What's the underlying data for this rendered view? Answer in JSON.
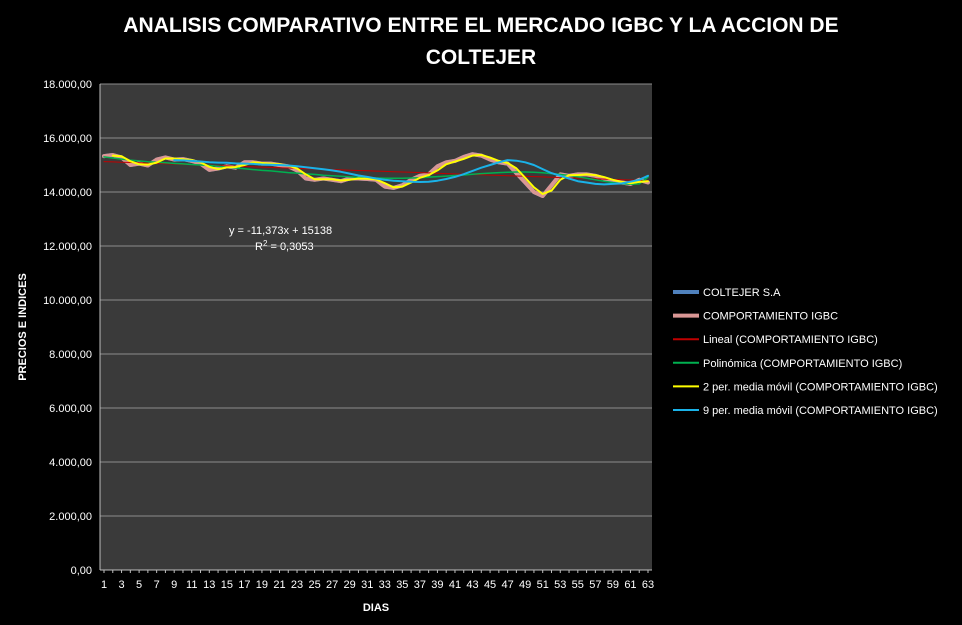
{
  "chart_data": {
    "type": "line",
    "title_line1": "ANALISIS COMPARATIVO ENTRE  EL MERCADO IGBC Y LA ACCION DE",
    "title_line2": "COLTEJER",
    "xlabel": "DIAS",
    "ylabel": "PRECIOS  E INDICES",
    "ylim": [
      0,
      18000
    ],
    "yticks": [
      "0,00",
      "2.000,00",
      "4.000,00",
      "6.000,00",
      "8.000,00",
      "10.000,00",
      "12.000,00",
      "14.000,00",
      "16.000,00",
      "18.000,00"
    ],
    "ytick_values": [
      0,
      2000,
      4000,
      6000,
      8000,
      10000,
      12000,
      14000,
      16000,
      18000
    ],
    "xticks": [
      "1",
      "3",
      "5",
      "7",
      "9",
      "11",
      "13",
      "15",
      "17",
      "19",
      "21",
      "23",
      "25",
      "27",
      "29",
      "31",
      "33",
      "35",
      "37",
      "39",
      "41",
      "43",
      "45",
      "47",
      "49",
      "51",
      "53",
      "55",
      "57",
      "59",
      "61",
      "63"
    ],
    "x": [
      1,
      2,
      3,
      4,
      5,
      6,
      7,
      8,
      9,
      10,
      11,
      12,
      13,
      14,
      15,
      16,
      17,
      18,
      19,
      20,
      21,
      22,
      23,
      24,
      25,
      26,
      27,
      28,
      29,
      30,
      31,
      32,
      33,
      34,
      35,
      36,
      37,
      38,
      39,
      40,
      41,
      42,
      43,
      44,
      45,
      46,
      47,
      48,
      49,
      50,
      51,
      52,
      53,
      54,
      55,
      56,
      57,
      58,
      59,
      60,
      61,
      62,
      63
    ],
    "grid": true,
    "legend_position": "right",
    "background_color": "#3a3a3a",
    "equation": "y = -11,373x + 15138",
    "r_squared_label": "R",
    "r_squared_exp": "2",
    "r_squared_value": " = 0,3053",
    "series": [
      {
        "name": "COLTEJER S.A",
        "color": "#4f81bd",
        "width": 4,
        "values": [
          15330,
          15370,
          15280,
          15000,
          15050,
          14980,
          15200,
          15280,
          15200,
          15220,
          15150,
          15050,
          14820,
          14870,
          14950,
          14900,
          15100,
          15100,
          15050,
          15050,
          15000,
          14950,
          14800,
          14500,
          14450,
          14500,
          14450,
          14400,
          14500,
          14500,
          14480,
          14450,
          14200,
          14150,
          14250,
          14450,
          14600,
          14650,
          14950,
          15100,
          15150,
          15300,
          15400,
          15350,
          15200,
          15100,
          15050,
          14700,
          14350,
          14000,
          13850,
          14250,
          14650,
          14600,
          14650,
          14650,
          14600,
          14500,
          14400,
          14350,
          14300,
          14450,
          14350
        ]
      },
      {
        "name": "COMPORTAMIENTO IGBC",
        "color": "#d99694",
        "width": 4,
        "values": [
          15330,
          15370,
          15280,
          15000,
          15050,
          14980,
          15200,
          15280,
          15200,
          15220,
          15150,
          15050,
          14820,
          14870,
          14950,
          14900,
          15100,
          15100,
          15050,
          15050,
          15000,
          14950,
          14800,
          14500,
          14450,
          14500,
          14450,
          14400,
          14500,
          14500,
          14480,
          14450,
          14200,
          14150,
          14250,
          14450,
          14600,
          14650,
          14950,
          15100,
          15150,
          15300,
          15400,
          15350,
          15200,
          15100,
          15050,
          14700,
          14350,
          14000,
          13850,
          14250,
          14650,
          14600,
          14650,
          14650,
          14600,
          14500,
          14400,
          14350,
          14300,
          14450,
          14350
        ]
      },
      {
        "name": "Lineal (COMPORTAMIENTO IGBC)",
        "color": "#c00000",
        "width": 1,
        "values": [
          15127,
          15115,
          15104,
          15092,
          15081,
          15070,
          15058,
          15047,
          15036,
          15024,
          15013,
          15002,
          14990,
          14979,
          14967,
          14956,
          14945,
          14933,
          14922,
          14911,
          14899,
          14888,
          14876,
          14865,
          14854,
          14842,
          14831,
          14820,
          14808,
          14797,
          14786,
          14774,
          14763,
          14751,
          14740,
          14729,
          14717,
          14706,
          14695,
          14683,
          14672,
          14661,
          14649,
          14638,
          14626,
          14615,
          14604,
          14592,
          14581,
          14570,
          14558,
          14547,
          14535,
          14524,
          14513,
          14501,
          14490,
          14479,
          14467,
          14456,
          14445,
          14433,
          14422
        ]
      },
      {
        "name": "Polinómica (COMPORTAMIENTO IGBC)",
        "color": "#00b050",
        "width": 1.5,
        "values": [
          15300,
          15260,
          15220,
          15180,
          15150,
          15120,
          15100,
          15080,
          15060,
          15040,
          15020,
          15000,
          14980,
          14950,
          14920,
          14890,
          14860,
          14830,
          14800,
          14780,
          14750,
          14720,
          14700,
          14670,
          14650,
          14620,
          14600,
          14580,
          14560,
          14540,
          14530,
          14520,
          14510,
          14510,
          14510,
          14520,
          14530,
          14550,
          14570,
          14590,
          14610,
          14630,
          14660,
          14680,
          14700,
          14720,
          14730,
          14740,
          14740,
          14730,
          14710,
          14680,
          14650,
          14610,
          14560,
          14510,
          14450,
          14400,
          14350,
          14310,
          14290,
          14300,
          14550
        ]
      },
      {
        "name": "2 per. media móvil (COMPORTAMIENTO IGBC)",
        "color": "#ffff00",
        "width": 2,
        "values": [
          null,
          15350,
          15325,
          15140,
          15025,
          15015,
          15090,
          15240,
          15240,
          15210,
          15185,
          15100,
          14935,
          14845,
          14910,
          14925,
          15000,
          15100,
          15075,
          15050,
          15025,
          14975,
          14875,
          14650,
          14475,
          14475,
          14475,
          14425,
          14450,
          14500,
          14490,
          14465,
          14325,
          14175,
          14200,
          14350,
          14525,
          14625,
          14800,
          15025,
          15125,
          15225,
          15350,
          15375,
          15275,
          15150,
          15075,
          14875,
          14525,
          14175,
          13925,
          14050,
          14450,
          14625,
          14625,
          14650,
          14625,
          14550,
          14450,
          14375,
          14325,
          14375,
          14400
        ]
      },
      {
        "name": "9 per. media móvil (COMPORTAMIENTO IGBC)",
        "color": "#1ab2e8",
        "width": 2,
        "values": [
          null,
          null,
          null,
          null,
          null,
          null,
          null,
          null,
          15180,
          15170,
          15150,
          15130,
          15100,
          15090,
          15080,
          15060,
          15050,
          15040,
          15020,
          15010,
          15000,
          14980,
          14950,
          14920,
          14880,
          14840,
          14800,
          14750,
          14680,
          14610,
          14560,
          14500,
          14450,
          14420,
          14400,
          14380,
          14370,
          14380,
          14420,
          14480,
          14560,
          14660,
          14780,
          14900,
          15000,
          15100,
          15180,
          15160,
          15100,
          15000,
          14850,
          14700,
          14600,
          14500,
          14400,
          14350,
          14300,
          14280,
          14300,
          14320,
          14380,
          14450,
          14600
        ]
      }
    ]
  }
}
